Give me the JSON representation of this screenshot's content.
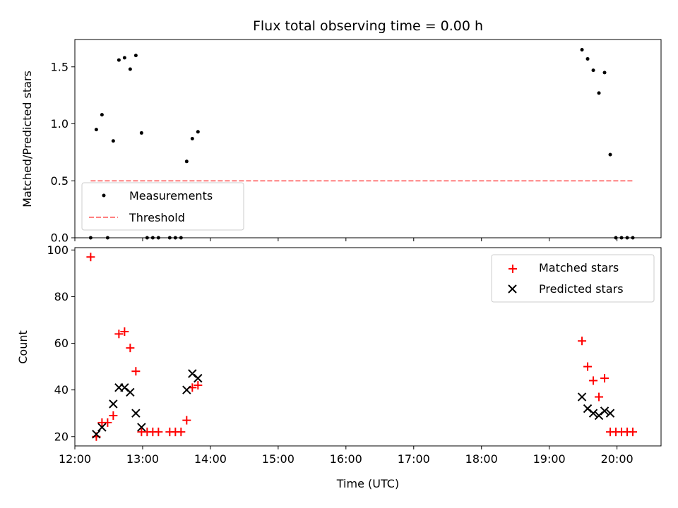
{
  "colors": {
    "measurements": "#000000",
    "threshold": "#ff8080",
    "matched": "#ff0000",
    "predicted": "#000000"
  },
  "chart_data": [
    {
      "type": "scatter",
      "title": "Flux total observing time = 0.00 h",
      "xlabel": "",
      "ylabel": "Matched/Predicted stars",
      "xlim": [
        "12:00",
        "20:39"
      ],
      "ylim": [
        0,
        1.74
      ],
      "yticks": [
        "0.0",
        "0.5",
        "1.0",
        "1.5"
      ],
      "ytick_values": [
        0,
        0.5,
        1.0,
        1.5
      ],
      "grid": false,
      "legend_position": "lower-left",
      "series": [
        {
          "name": "Measurements",
          "marker": "dot",
          "x": [
            "12:14",
            "12:19",
            "12:24",
            "12:29",
            "12:34",
            "12:39",
            "12:44",
            "12:49",
            "12:54",
            "12:59",
            "13:04",
            "13:09",
            "13:14",
            "13:24",
            "13:29",
            "13:34",
            "13:39",
            "13:44",
            "13:49",
            "19:29",
            "19:34",
            "19:39",
            "19:44",
            "19:49",
            "19:54",
            "19:59",
            "20:04",
            "20:09",
            "20:14"
          ],
          "y": [
            0,
            0.95,
            1.08,
            0,
            0.85,
            1.56,
            1.58,
            1.48,
            1.6,
            0.92,
            0,
            0,
            0,
            0,
            0,
            0,
            0.67,
            0.87,
            0.93,
            1.65,
            1.57,
            1.47,
            1.27,
            1.45,
            0.73,
            0,
            0,
            0,
            0
          ]
        },
        {
          "name": "Threshold",
          "style": "dashed-line",
          "x": [
            "12:14",
            "20:14"
          ],
          "y": [
            0.5,
            0.5
          ]
        }
      ]
    },
    {
      "type": "scatter",
      "title": "",
      "xlabel": "Time (UTC)",
      "ylabel": "Count",
      "xlim": [
        "12:00",
        "20:39"
      ],
      "ylim": [
        16,
        101
      ],
      "xticks": [
        "12:00",
        "13:00",
        "14:00",
        "15:00",
        "16:00",
        "17:00",
        "18:00",
        "19:00",
        "20:00"
      ],
      "yticks": [
        "20",
        "40",
        "60",
        "80",
        "100"
      ],
      "ytick_values": [
        20,
        40,
        60,
        80,
        100
      ],
      "grid": false,
      "legend_position": "top-right",
      "series": [
        {
          "name": "Matched stars",
          "marker": "plus",
          "x": [
            "12:14",
            "12:19",
            "12:24",
            "12:29",
            "12:34",
            "12:39",
            "12:44",
            "12:49",
            "12:54",
            "12:59",
            "13:04",
            "13:09",
            "13:14",
            "13:24",
            "13:29",
            "13:34",
            "13:39",
            "13:44",
            "13:49",
            "19:29",
            "19:34",
            "19:39",
            "19:44",
            "19:49",
            "19:54",
            "19:59",
            "20:04",
            "20:09",
            "20:14"
          ],
          "y": [
            97,
            20,
            26,
            26,
            29,
            64,
            65,
            58,
            48,
            22,
            22,
            22,
            22,
            22,
            22,
            22,
            27,
            41,
            42,
            61,
            50,
            44,
            37,
            45,
            22,
            22,
            22,
            22,
            22
          ]
        },
        {
          "name": "Predicted stars",
          "marker": "x",
          "x": [
            "12:19",
            "12:24",
            "12:34",
            "12:39",
            "12:44",
            "12:49",
            "12:54",
            "12:59",
            "13:39",
            "13:44",
            "13:49",
            "19:29",
            "19:34",
            "19:39",
            "19:44",
            "19:49",
            "19:54"
          ],
          "y": [
            21,
            24,
            34,
            41,
            41,
            39,
            30,
            24,
            40,
            47,
            45,
            37,
            32,
            30,
            29,
            31,
            30
          ]
        }
      ]
    }
  ]
}
